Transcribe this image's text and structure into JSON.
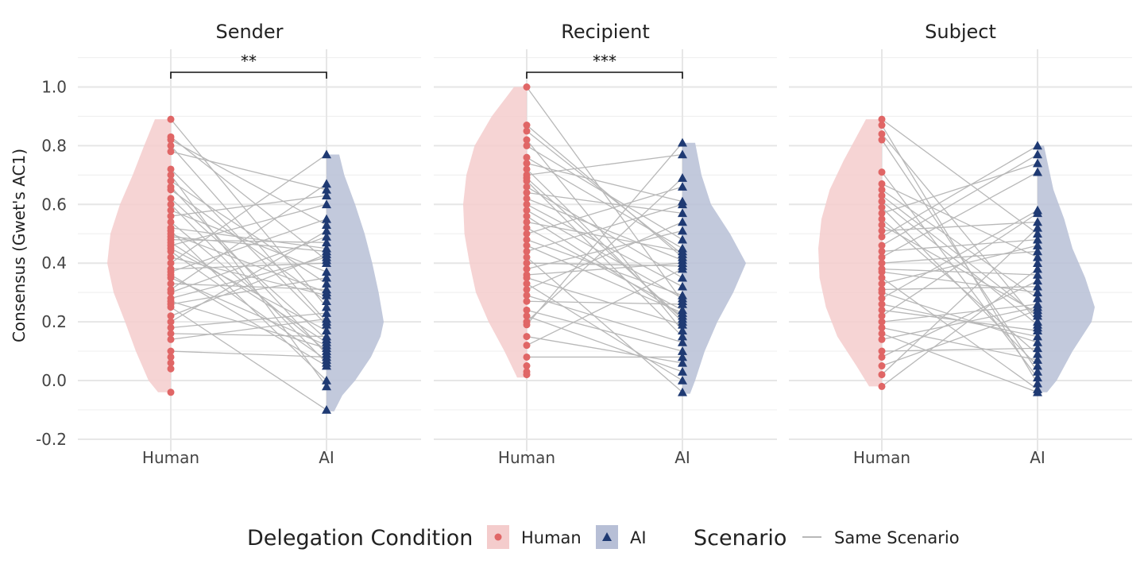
{
  "chart_data": {
    "type": "violin-paired-dot",
    "ylabel": "Consensus (Gwet's AC1)",
    "ylim": [
      -0.2,
      1.12
    ],
    "y_ticks": [
      -0.2,
      0.0,
      0.2,
      0.4,
      0.6,
      0.8,
      1.0
    ],
    "y_tick_labels": [
      "-0.2",
      "0.0",
      "0.2",
      "0.4",
      "0.6",
      "0.8",
      "1.0"
    ],
    "categories": [
      "Human",
      "AI"
    ],
    "colors": {
      "Human": "#e06666",
      "AI": "#1f3a73",
      "Human_fill": "#f4cccc",
      "AI_fill": "#b7bfd6",
      "line": "#b8b8b8"
    },
    "legend": {
      "placement": "bottom",
      "fill_title": "Delegation Condition",
      "fill_items": [
        "Human",
        "AI"
      ],
      "line_title": "Scenario",
      "line_item": "Same Scenario"
    },
    "panels": [
      {
        "title": "Sender",
        "significance": "**",
        "human_range": [
          -0.04,
          0.89
        ],
        "ai_range": [
          -0.105,
          0.77
        ],
        "human_density": [
          [
            -0.04,
            0.2
          ],
          [
            0.0,
            0.35
          ],
          [
            0.1,
            0.55
          ],
          [
            0.2,
            0.72
          ],
          [
            0.3,
            0.9
          ],
          [
            0.4,
            1.0
          ],
          [
            0.5,
            0.95
          ],
          [
            0.6,
            0.8
          ],
          [
            0.7,
            0.6
          ],
          [
            0.8,
            0.42
          ],
          [
            0.89,
            0.25
          ]
        ],
        "ai_density": [
          [
            -0.105,
            0.12
          ],
          [
            -0.05,
            0.25
          ],
          [
            0.0,
            0.45
          ],
          [
            0.08,
            0.7
          ],
          [
            0.15,
            0.85
          ],
          [
            0.2,
            0.9
          ],
          [
            0.3,
            0.82
          ],
          [
            0.4,
            0.72
          ],
          [
            0.5,
            0.6
          ],
          [
            0.6,
            0.45
          ],
          [
            0.7,
            0.28
          ],
          [
            0.77,
            0.2
          ]
        ],
        "human_values": [
          0.89,
          0.83,
          0.82,
          0.8,
          0.78,
          0.72,
          0.7,
          0.68,
          0.66,
          0.65,
          0.62,
          0.6,
          0.58,
          0.56,
          0.54,
          0.52,
          0.51,
          0.5,
          0.49,
          0.48,
          0.47,
          0.46,
          0.45,
          0.44,
          0.42,
          0.4,
          0.38,
          0.37,
          0.36,
          0.35,
          0.33,
          0.31,
          0.3,
          0.28,
          0.27,
          0.26,
          0.25,
          0.22,
          0.2,
          0.18,
          0.16,
          0.14,
          0.1,
          0.08,
          0.06,
          0.04,
          -0.04
        ],
        "ai_values": [
          0.77,
          0.67,
          0.65,
          0.63,
          0.6,
          0.55,
          0.53,
          0.51,
          0.49,
          0.47,
          0.45,
          0.43,
          0.42,
          0.41,
          0.4,
          0.37,
          0.35,
          0.33,
          0.31,
          0.29,
          0.27,
          0.25,
          0.23,
          0.21,
          0.19,
          0.17,
          0.15,
          0.14,
          0.13,
          0.12,
          0.11,
          0.1,
          0.09,
          0.08,
          0.07,
          0.06,
          0.05,
          0.0,
          -0.02,
          -0.1,
          0.44,
          0.3,
          0.2
        ]
      },
      {
        "title": "Recipient",
        "significance": "***",
        "human_range": [
          0.01,
          1.0
        ],
        "ai_range": [
          -0.045,
          0.81
        ],
        "human_density": [
          [
            0.01,
            0.15
          ],
          [
            0.1,
            0.35
          ],
          [
            0.2,
            0.6
          ],
          [
            0.3,
            0.8
          ],
          [
            0.4,
            0.9
          ],
          [
            0.5,
            0.98
          ],
          [
            0.6,
            1.0
          ],
          [
            0.7,
            0.95
          ],
          [
            0.8,
            0.82
          ],
          [
            0.9,
            0.55
          ],
          [
            1.0,
            0.2
          ]
        ],
        "ai_density": [
          [
            -0.045,
            0.12
          ],
          [
            0.0,
            0.2
          ],
          [
            0.1,
            0.35
          ],
          [
            0.2,
            0.55
          ],
          [
            0.3,
            0.8
          ],
          [
            0.4,
            1.0
          ],
          [
            0.5,
            0.75
          ],
          [
            0.6,
            0.45
          ],
          [
            0.7,
            0.3
          ],
          [
            0.81,
            0.2
          ]
        ],
        "human_values": [
          1.0,
          0.87,
          0.85,
          0.82,
          0.8,
          0.76,
          0.74,
          0.72,
          0.7,
          0.69,
          0.68,
          0.66,
          0.64,
          0.62,
          0.6,
          0.58,
          0.56,
          0.54,
          0.52,
          0.5,
          0.48,
          0.46,
          0.44,
          0.42,
          0.4,
          0.38,
          0.36,
          0.35,
          0.33,
          0.31,
          0.29,
          0.27,
          0.24,
          0.22,
          0.2,
          0.19,
          0.15,
          0.12,
          0.08,
          0.05,
          0.03,
          0.02
        ],
        "ai_values": [
          0.81,
          0.77,
          0.69,
          0.66,
          0.61,
          0.6,
          0.57,
          0.54,
          0.51,
          0.48,
          0.45,
          0.44,
          0.43,
          0.42,
          0.41,
          0.4,
          0.39,
          0.38,
          0.35,
          0.32,
          0.29,
          0.28,
          0.26,
          0.24,
          0.22,
          0.21,
          0.2,
          0.19,
          0.17,
          0.15,
          0.13,
          0.1,
          0.08,
          0.06,
          0.03,
          0.0,
          -0.04,
          0.23,
          0.27
        ]
      },
      {
        "title": "Subject",
        "significance": "",
        "human_range": [
          -0.02,
          0.89
        ],
        "ai_range": [
          -0.04,
          0.8
        ],
        "human_density": [
          [
            -0.02,
            0.2
          ],
          [
            0.05,
            0.4
          ],
          [
            0.15,
            0.7
          ],
          [
            0.25,
            0.88
          ],
          [
            0.35,
            0.98
          ],
          [
            0.45,
            1.0
          ],
          [
            0.55,
            0.95
          ],
          [
            0.65,
            0.82
          ],
          [
            0.75,
            0.6
          ],
          [
            0.89,
            0.25
          ]
        ],
        "ai_density": [
          [
            -0.04,
            0.15
          ],
          [
            0.0,
            0.3
          ],
          [
            0.1,
            0.55
          ],
          [
            0.2,
            0.85
          ],
          [
            0.25,
            0.9
          ],
          [
            0.35,
            0.75
          ],
          [
            0.45,
            0.55
          ],
          [
            0.55,
            0.42
          ],
          [
            0.65,
            0.25
          ],
          [
            0.8,
            0.1
          ]
        ],
        "human_values": [
          0.89,
          0.87,
          0.84,
          0.82,
          0.71,
          0.67,
          0.65,
          0.63,
          0.61,
          0.59,
          0.57,
          0.55,
          0.53,
          0.51,
          0.49,
          0.46,
          0.44,
          0.42,
          0.4,
          0.38,
          0.37,
          0.35,
          0.33,
          0.31,
          0.3,
          0.28,
          0.26,
          0.24,
          0.22,
          0.2,
          0.18,
          0.16,
          0.14,
          0.1,
          0.08,
          0.05,
          0.02,
          -0.02
        ],
        "ai_values": [
          0.8,
          0.77,
          0.74,
          0.71,
          0.58,
          0.57,
          0.54,
          0.52,
          0.5,
          0.48,
          0.46,
          0.44,
          0.42,
          0.38,
          0.36,
          0.34,
          0.32,
          0.3,
          0.28,
          0.26,
          0.24,
          0.23,
          0.2,
          0.19,
          0.17,
          0.15,
          0.13,
          0.11,
          0.09,
          0.07,
          0.05,
          0.03,
          0.01,
          -0.01,
          -0.03,
          -0.04,
          0.25,
          0.22,
          0.18,
          0.4
        ]
      }
    ]
  }
}
